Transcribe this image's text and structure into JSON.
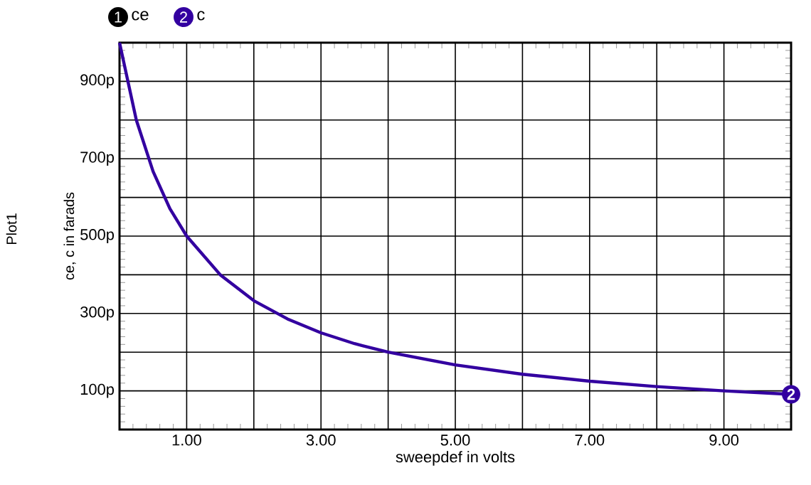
{
  "chart_data": {
    "type": "line",
    "xlabel": "sweepdef in volts",
    "ylabel": "ce, c in farads",
    "annotations": [
      "Plot1",
      "1",
      "2",
      {
        "text": "2",
        "x": 10,
        "y": 91
      }
    ],
    "x": [
      0,
      0.25,
      0.5,
      0.75,
      1,
      1.5,
      2,
      2.5,
      3,
      3.5,
      4,
      5,
      6,
      7,
      8,
      9,
      10
    ],
    "series": [
      {
        "name": "ce",
        "color": "#000000",
        "values": [
          null,
          null,
          null,
          null,
          null,
          null,
          null,
          null,
          null,
          null,
          null,
          null,
          null,
          null,
          null,
          null,
          null
        ]
      },
      {
        "name": "c",
        "color": "#3300a0",
        "values": [
          1000,
          800,
          667,
          571,
          500,
          400,
          333,
          286,
          250,
          222,
          200,
          167,
          143,
          125,
          111,
          100,
          91
        ]
      }
    ],
    "xlim": [
      0,
      10
    ],
    "ylim": [
      0,
      1000
    ],
    "xticks": [
      {
        "value": 0,
        "label": null
      },
      {
        "value": 1,
        "label": "1.00"
      },
      {
        "value": 2,
        "label": null
      },
      {
        "value": 3,
        "label": "3.00"
      },
      {
        "value": 4,
        "label": null
      },
      {
        "value": 5,
        "label": "5.00"
      },
      {
        "value": 6,
        "label": null
      },
      {
        "value": 7,
        "label": "7.00"
      },
      {
        "value": 8,
        "label": null
      },
      {
        "value": 9,
        "label": "9.00"
      },
      {
        "value": 10,
        "label": null
      }
    ],
    "yticks": [
      {
        "value": 0,
        "label": null
      },
      {
        "value": 100,
        "label": "100p"
      },
      {
        "value": 200,
        "label": null
      },
      {
        "value": 300,
        "label": "300p"
      },
      {
        "value": 400,
        "label": null
      },
      {
        "value": 500,
        "label": "500p"
      },
      {
        "value": 600,
        "label": null
      },
      {
        "value": 700,
        "label": "700p"
      },
      {
        "value": 800,
        "label": null
      },
      {
        "value": 900,
        "label": "900p"
      },
      {
        "value": 1000,
        "label": null
      }
    ],
    "grid": true,
    "legend": "top left",
    "line_style": "solid"
  }
}
